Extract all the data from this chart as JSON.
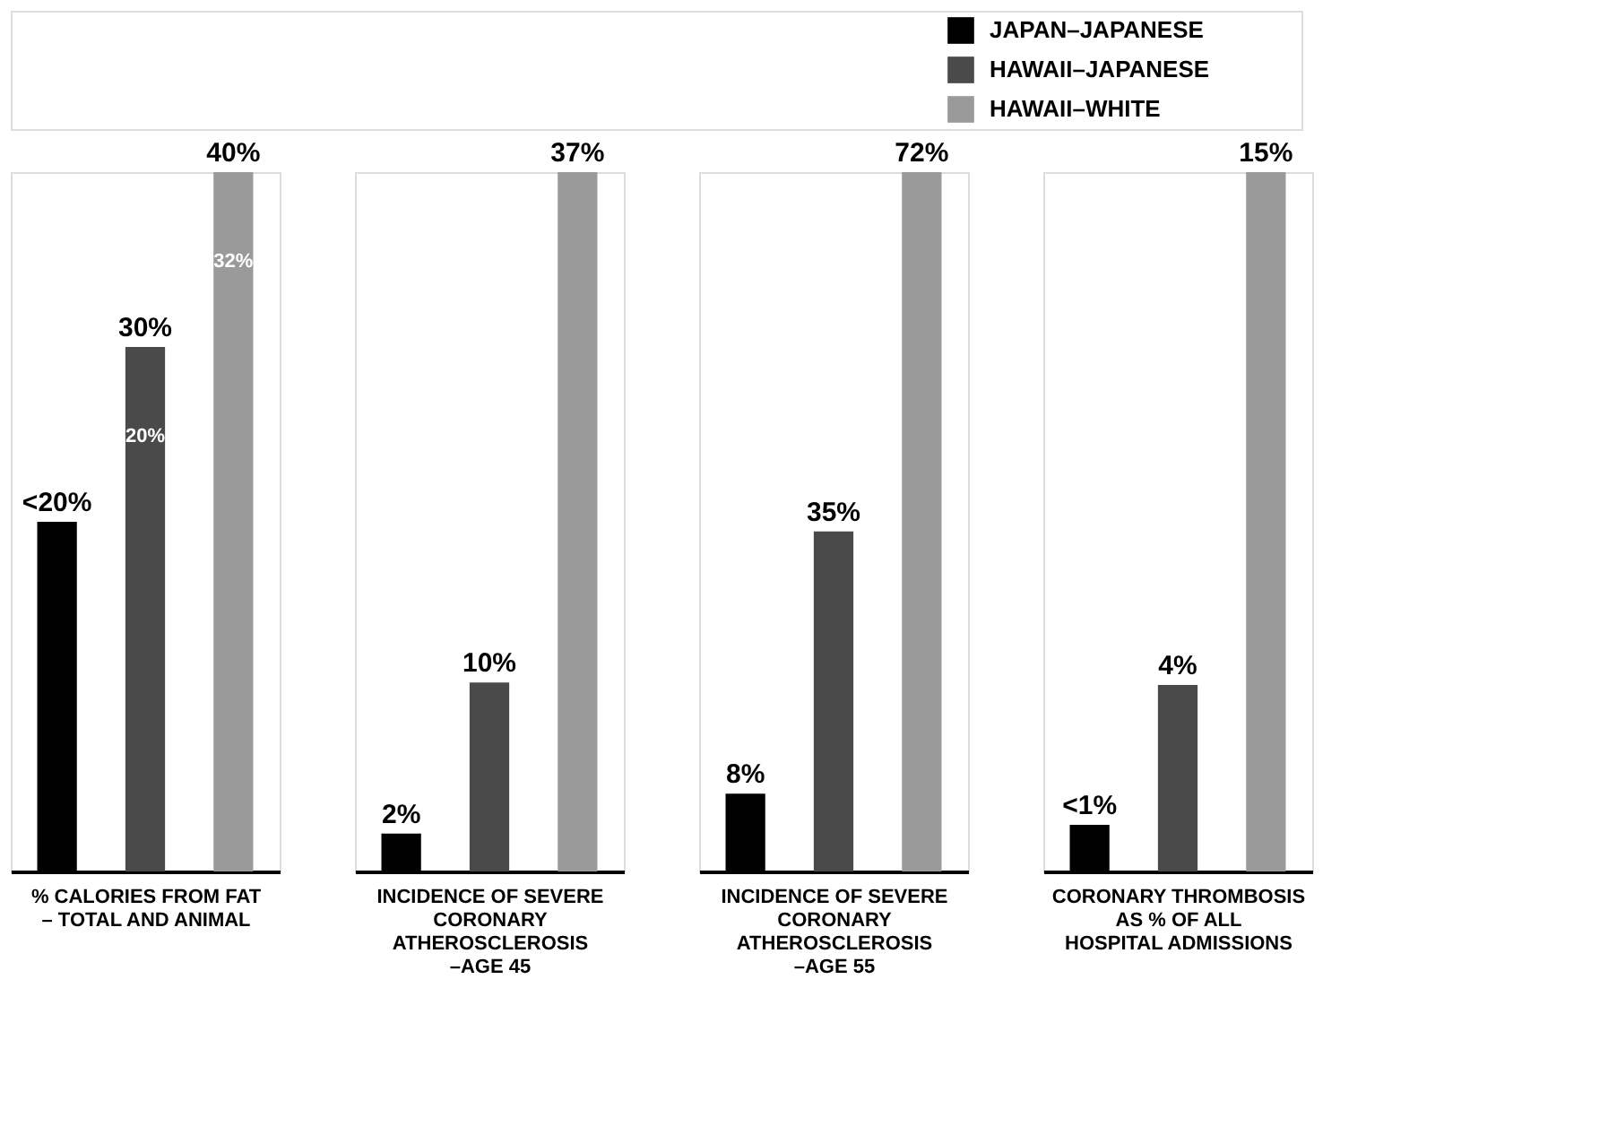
{
  "chart_data": [
    {
      "type": "bar",
      "categories": [
        null,
        null,
        null
      ],
      "xlabel": "% CALORIES FROM FAT – TOTAL AND ANIMAL",
      "tick_labels": false,
      "grid": false,
      "values": [
        20,
        30,
        40
      ],
      "colors": [
        "#000000",
        "#4a4a4a",
        "#9a9a9a"
      ],
      "value_labels": [
        "<20%",
        "30%",
        "40%"
      ],
      "annotations": [
        "20%",
        "32%"
      ]
    },
    {
      "type": "bar",
      "categories": [
        null,
        null,
        null
      ],
      "xlabel": "INCIDENCE OF SEVERE CORONARY ATHEROSCLEROSIS –AGE 45",
      "tick_labels": false,
      "grid": false,
      "values": [
        2,
        10,
        37
      ],
      "colors": [
        "#000000",
        "#4a4a4a",
        "#9a9a9a"
      ],
      "value_labels": [
        "2%",
        "10%",
        "37%"
      ]
    },
    {
      "type": "bar",
      "categories": [
        null,
        null,
        null
      ],
      "xlabel": "INCIDENCE OF SEVERE CORONARY ATHEROSCLEROSIS –AGE 55",
      "tick_labels": false,
      "grid": false,
      "values": [
        8,
        35,
        72
      ],
      "colors": [
        "#000000",
        "#4a4a4a",
        "#9a9a9a"
      ],
      "value_labels": [
        "8%",
        "35%",
        "72%"
      ]
    },
    {
      "type": "bar",
      "categories": [
        null,
        null,
        null
      ],
      "xlabel": "CORONARY THROMBOSIS AS % OF ALL HOSPITAL ADMISSIONS",
      "tick_labels": false,
      "grid": false,
      "values": [
        1,
        4,
        15
      ],
      "colors": [
        "#000000",
        "#4a4a4a",
        "#9a9a9a"
      ],
      "value_labels": [
        "<1%",
        "4%",
        "15%"
      ]
    },
    {
      "type": "other",
      "legend": "top right",
      "series": [
        {
          "name": "JAPAN–JAPANESE",
          "color": "#000000"
        },
        {
          "name": "HAWAII–JAPANESE",
          "color": "#4a4a4a"
        },
        {
          "name": "HAWAII–WHITE",
          "color": "#9a9a9a"
        }
      ]
    }
  ]
}
